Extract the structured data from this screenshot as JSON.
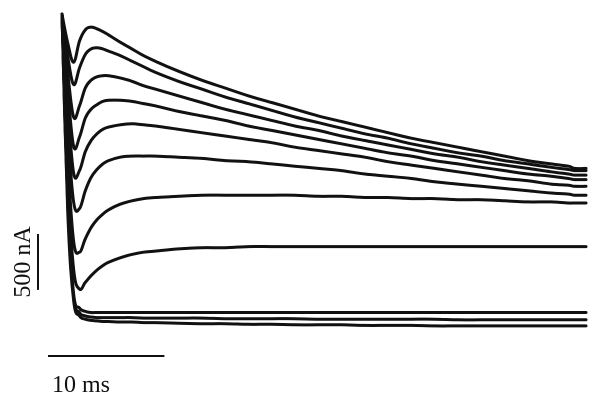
{
  "chart_data": {
    "type": "line",
    "title": "",
    "xlabel": "",
    "ylabel": "",
    "grid": false,
    "legend": "none",
    "x_unit": "ms",
    "y_unit": "nA",
    "xlim": [
      0,
      45
    ],
    "ylim": [
      -500,
      2400
    ],
    "x": [
      0,
      0.5,
      1,
      1.5,
      2,
      2.5,
      3,
      3.5,
      4,
      5,
      6,
      7,
      8,
      10,
      12,
      14,
      16,
      18,
      20,
      22,
      24,
      26,
      28,
      30,
      32,
      34,
      36,
      38,
      40,
      42,
      43.5,
      44,
      45
    ],
    "series": [
      {
        "values": [
          2380,
          2120,
          1950,
          2140,
          2240,
          2265,
          2250,
          2225,
          2195,
          2130,
          2070,
          2010,
          1960,
          1870,
          1790,
          1720,
          1650,
          1590,
          1530,
          1470,
          1420,
          1370,
          1320,
          1270,
          1230,
          1190,
          1150,
          1110,
          1070,
          1040,
          1020,
          1000,
          1000
        ]
      },
      {
        "values": [
          2380,
          2000,
          1750,
          1900,
          2020,
          2070,
          2080,
          2070,
          2050,
          2010,
          1960,
          1910,
          1860,
          1780,
          1710,
          1640,
          1580,
          1520,
          1460,
          1410,
          1360,
          1310,
          1270,
          1220,
          1180,
          1140,
          1110,
          1070,
          1040,
          1010,
          990,
          980,
          980
        ]
      },
      {
        "values": [
          2380,
          1850,
          1460,
          1560,
          1720,
          1790,
          1820,
          1830,
          1830,
          1810,
          1780,
          1740,
          1710,
          1650,
          1590,
          1530,
          1480,
          1430,
          1380,
          1340,
          1290,
          1250,
          1210,
          1170,
          1130,
          1100,
          1060,
          1030,
          1000,
          970,
          950,
          940,
          940
        ]
      },
      {
        "values": [
          2380,
          1700,
          1200,
          1280,
          1450,
          1530,
          1570,
          1600,
          1610,
          1610,
          1600,
          1580,
          1560,
          1510,
          1470,
          1430,
          1380,
          1340,
          1300,
          1260,
          1220,
          1180,
          1140,
          1110,
          1070,
          1040,
          1010,
          980,
          950,
          930,
          910,
          900,
          900
        ]
      },
      {
        "values": [
          2380,
          1550,
          960,
          980,
          1150,
          1250,
          1310,
          1350,
          1370,
          1390,
          1400,
          1390,
          1380,
          1350,
          1320,
          1290,
          1260,
          1230,
          1190,
          1160,
          1130,
          1100,
          1060,
          1030,
          1000,
          970,
          940,
          910,
          890,
          860,
          850,
          840,
          840
        ]
      },
      {
        "values": [
          2380,
          1350,
          700,
          640,
          800,
          920,
          990,
          1040,
          1070,
          1100,
          1110,
          1110,
          1110,
          1100,
          1090,
          1070,
          1060,
          1040,
          1020,
          1000,
          980,
          950,
          930,
          910,
          880,
          860,
          840,
          820,
          800,
          780,
          770,
          760,
          760
        ]
      },
      {
        "values": [
          2380,
          1100,
          350,
          250,
          370,
          470,
          540,
          590,
          630,
          680,
          710,
          730,
          740,
          750,
          760,
          760,
          760,
          760,
          760,
          750,
          750,
          740,
          740,
          730,
          730,
          720,
          720,
          710,
          700,
          700,
          690,
          690,
          690
        ]
      },
      {
        "values": [
          2380,
          900,
          100,
          -80,
          -20,
          40,
          90,
          130,
          160,
          200,
          230,
          250,
          260,
          280,
          290,
          290,
          300,
          300,
          300,
          300,
          300,
          300,
          300,
          300,
          300,
          300,
          300,
          300,
          300,
          300,
          300,
          300,
          300
        ]
      },
      {
        "values": [
          2380,
          700,
          -120,
          -250,
          -280,
          -290,
          -290,
          -290,
          -290,
          -290,
          -290,
          -290,
          -290,
          -290,
          -290,
          -290,
          -290,
          -290,
          -290,
          -290,
          -290,
          -290,
          -290,
          -290,
          -290,
          -290,
          -290,
          -290,
          -290,
          -290,
          -290,
          -290,
          -290
        ]
      },
      {
        "values": [
          2380,
          650,
          -150,
          -290,
          -320,
          -330,
          -335,
          -335,
          -335,
          -335,
          -335,
          -340,
          -340,
          -340,
          -340,
          -345,
          -345,
          -345,
          -345,
          -350,
          -350,
          -350,
          -350,
          -350,
          -350,
          -355,
          -355,
          -355,
          -355,
          -355,
          -355,
          -355,
          -355
        ]
      },
      {
        "values": [
          2380,
          600,
          -180,
          -320,
          -350,
          -360,
          -365,
          -370,
          -370,
          -375,
          -375,
          -380,
          -380,
          -385,
          -390,
          -390,
          -395,
          -395,
          -400,
          -400,
          -400,
          -405,
          -405,
          -405,
          -410,
          -410,
          -410,
          -410,
          -410,
          -410,
          -410,
          -410,
          -410
        ]
      }
    ],
    "annotations": {
      "scale_bar_y": {
        "label": "500 nA",
        "value": 500
      },
      "scale_bar_x": {
        "label": "10 ms",
        "value": 10
      }
    }
  }
}
